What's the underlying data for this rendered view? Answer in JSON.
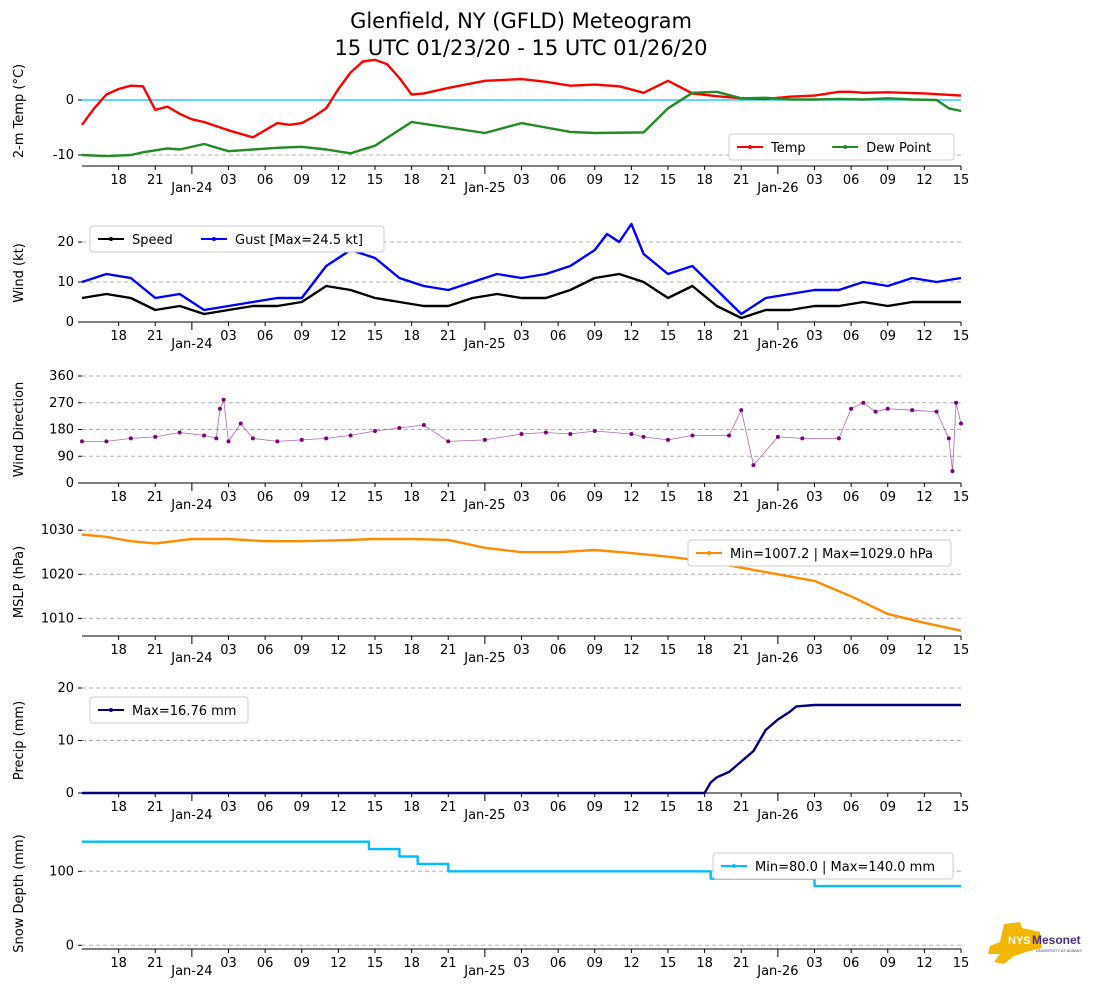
{
  "chart_data": {
    "type": "line",
    "title": [
      "Glenfield, NY (GFLD) Meteogram",
      "15 UTC 01/23/20 - 15 UTC 01/26/20"
    ],
    "x_range_hours": [
      0,
      72
    ],
    "x_ticks": [
      "18",
      "21",
      "Jan-24",
      "03",
      "06",
      "09",
      "12",
      "15",
      "18",
      "21",
      "Jan-25",
      "03",
      "06",
      "09",
      "12",
      "15",
      "18",
      "21",
      "Jan-26",
      "03",
      "06",
      "09",
      "12",
      "15"
    ],
    "panels": [
      {
        "id": "temp",
        "ylabel": "2-m Temp (°C)",
        "ylim": [
          -12,
          8
        ],
        "yticks": [
          "0",
          "-10"
        ],
        "ytick_values": [
          0,
          -10
        ],
        "zero_line": true,
        "legend": [
          {
            "label": "Temp",
            "color": "#ff0000"
          },
          {
            "label": "Dew Point",
            "color": "#228b22"
          }
        ],
        "series": [
          {
            "name": "Temp",
            "color": "#ff0000",
            "x": [
              0,
              1,
              2,
              3,
              4,
              5,
              6,
              7,
              8,
              9,
              10,
              12,
              14,
              16,
              17,
              18,
              19,
              20,
              21,
              22,
              23,
              24,
              25,
              26,
              27,
              28,
              30,
              33,
              36,
              38,
              40,
              42,
              44,
              46,
              48,
              50,
              52,
              54,
              56,
              58,
              60,
              62,
              63,
              64,
              66,
              69,
              72
            ],
            "y": [
              -4.5,
              -1.5,
              1,
              2,
              2.6,
              2.5,
              -1.8,
              -1.2,
              -2.5,
              -3.5,
              -4,
              -5.5,
              -6.8,
              -4.2,
              -4.5,
              -4.2,
              -3,
              -1.5,
              2,
              5,
              7,
              7.3,
              6.5,
              4,
              1,
              1.2,
              2.2,
              3.5,
              3.8,
              3.3,
              2.6,
              2.8,
              2.5,
              1.3,
              3.5,
              1.2,
              0.7,
              0.3,
              0.2,
              0.6,
              0.8,
              1.5,
              1.5,
              1.3,
              1.4,
              1.2,
              0.8
            ]
          },
          {
            "name": "Dew Point",
            "color": "#228b22",
            "x": [
              0,
              2,
              4,
              5,
              7,
              8,
              10,
              12,
              14,
              16,
              18,
              20,
              22,
              24,
              27,
              30,
              33,
              36,
              38,
              40,
              42,
              46,
              48,
              50,
              52,
              54,
              56,
              58,
              60,
              62,
              64,
              66,
              68,
              70,
              71,
              72
            ],
            "y": [
              -10,
              -10.2,
              -10,
              -9.5,
              -8.8,
              -9,
              -8,
              -9.3,
              -9,
              -8.7,
              -8.5,
              -9,
              -9.7,
              -8.3,
              -4,
              -5,
              -6,
              -4.2,
              -5,
              -5.8,
              -6,
              -5.9,
              -1.5,
              1.3,
              1.5,
              0.3,
              0.4,
              0.1,
              0.1,
              0.2,
              0.1,
              0.3,
              0.1,
              0,
              -1.5,
              -2
            ]
          }
        ]
      },
      {
        "id": "wind",
        "ylabel": "Wind (kt)",
        "ylim": [
          0,
          24.5
        ],
        "yticks": [
          "20",
          "10",
          "0"
        ],
        "ytick_values": [
          20,
          10,
          0
        ],
        "legend": [
          {
            "label": "Speed",
            "color": "#000000"
          },
          {
            "label": "Gust [Max=24.5 kt]",
            "color": "#0000ff"
          }
        ],
        "series": [
          {
            "name": "Speed",
            "color": "#000000",
            "x": [
              0,
              2,
              4,
              6,
              8,
              10,
              12,
              14,
              16,
              18,
              20,
              22,
              24,
              26,
              28,
              30,
              32,
              34,
              36,
              38,
              40,
              42,
              44,
              46,
              48,
              50,
              52,
              54,
              56,
              58,
              60,
              62,
              64,
              66,
              68,
              70,
              72
            ],
            "y": [
              6,
              7,
              6,
              3,
              4,
              2,
              3,
              4,
              4,
              5,
              9,
              8,
              6,
              5,
              4,
              4,
              6,
              7,
              6,
              6,
              8,
              11,
              12,
              10,
              6,
              9,
              4,
              1,
              3,
              3,
              4,
              4,
              5,
              4,
              5,
              5,
              5
            ]
          },
          {
            "name": "Gust",
            "color": "#0000ff",
            "x": [
              0,
              2,
              4,
              6,
              8,
              10,
              12,
              14,
              16,
              18,
              20,
              22,
              24,
              26,
              28,
              30,
              32,
              34,
              36,
              38,
              40,
              42,
              43,
              44,
              45,
              46,
              48,
              50,
              52,
              54,
              56,
              58,
              60,
              62,
              64,
              66,
              68,
              70,
              72
            ],
            "y": [
              10,
              12,
              11,
              6,
              7,
              3,
              4,
              5,
              6,
              6,
              14,
              18,
              16,
              11,
              9,
              8,
              10,
              12,
              11,
              12,
              14,
              18,
              22,
              20,
              24.5,
              17,
              12,
              14,
              8,
              2,
              6,
              7,
              8,
              8,
              10,
              9,
              11,
              10,
              11
            ]
          }
        ]
      },
      {
        "id": "wdir",
        "ylabel": "Wind Direction",
        "ylim": [
          0,
          360
        ],
        "yticks": [
          "360",
          "270",
          "180",
          "90",
          "0"
        ],
        "ytick_values": [
          360,
          270,
          180,
          90,
          0
        ],
        "series": [
          {
            "name": "Direction",
            "color": "#800080",
            "x": [
              0,
              2,
              4,
              6,
              8,
              10,
              11,
              11.3,
              11.6,
              12,
              13,
              14,
              16,
              18,
              20,
              22,
              24,
              26,
              28,
              30,
              33,
              36,
              38,
              40,
              42,
              45,
              46,
              48,
              50,
              53,
              54,
              55,
              57,
              59,
              62,
              63,
              64,
              65,
              66,
              68,
              70,
              71,
              71.3,
              71.6,
              72
            ],
            "y": [
              140,
              140,
              150,
              155,
              170,
              160,
              150,
              250,
              280,
              140,
              200,
              150,
              140,
              145,
              150,
              160,
              175,
              185,
              195,
              140,
              145,
              165,
              170,
              165,
              175,
              165,
              155,
              145,
              160,
              160,
              245,
              60,
              155,
              150,
              150,
              250,
              270,
              240,
              250,
              245,
              240,
              150,
              40,
              270,
              200
            ]
          }
        ]
      },
      {
        "id": "mslp",
        "ylabel": "MSLP (hPa)",
        "ylim": [
          1006,
          1030.5
        ],
        "yticks": [
          "1030",
          "1020",
          "1010"
        ],
        "ytick_values": [
          1030,
          1020,
          1010
        ],
        "legend": [
          {
            "label": "Min=1007.2 | Max=1029.0 hPa",
            "color": "#ff8c00"
          }
        ],
        "series": [
          {
            "name": "MSLP",
            "color": "#ff8c00",
            "x": [
              0,
              2,
              4,
              6,
              9,
              12,
              15,
              18,
              21,
              24,
              27,
              30,
              33,
              36,
              39,
              42,
              45,
              48,
              51,
              54,
              57,
              60,
              63,
              66,
              69,
              72
            ],
            "y": [
              1029,
              1028.5,
              1027.5,
              1027,
              1028,
              1028,
              1027.5,
              1027.5,
              1027.7,
              1028,
              1028,
              1027.8,
              1026,
              1025,
              1025,
              1025.5,
              1024.8,
              1024,
              1023,
              1021.5,
              1020,
              1018.5,
              1015,
              1011,
              1009,
              1007.2
            ]
          }
        ]
      },
      {
        "id": "precip",
        "ylabel": "Precip (mm)",
        "ylim": [
          0,
          20
        ],
        "yticks": [
          "20",
          "10",
          "0"
        ],
        "ytick_values": [
          20,
          10,
          0
        ],
        "legend": [
          {
            "label": "Max=16.76 mm",
            "color": "#000080"
          }
        ],
        "series": [
          {
            "name": "Precip",
            "color": "#000080",
            "x": [
              0,
              51,
              51.5,
              52,
              52.5,
              53,
              54,
              55,
              56,
              57,
              58,
              58.5,
              60,
              63,
              66,
              69,
              72
            ],
            "y": [
              0,
              0,
              2,
              3,
              3.5,
              4,
              6,
              8,
              12,
              14,
              15.5,
              16.5,
              16.76,
              16.76,
              16.76,
              16.76,
              16.76
            ]
          }
        ]
      },
      {
        "id": "snow",
        "ylabel": "Snow Depth (mm)",
        "ylim": [
          -5,
          145
        ],
        "yticks": [
          "100",
          "0"
        ],
        "ytick_values": [
          100,
          0
        ],
        "legend": [
          {
            "label": "Min=80.0 | Max=140.0 mm",
            "color": "#00bfff"
          }
        ],
        "series": [
          {
            "name": "Snow Depth",
            "color": "#00bfff",
            "x": [
              0,
              23.5,
              23.5,
              26.0,
              26.0,
              27.5,
              27.5,
              30.0,
              30.0,
              51.5,
              51.5,
              60,
              60,
              72
            ],
            "y": [
              140,
              140,
              130,
              130,
              120,
              120,
              110,
              110,
              100,
              100,
              90,
              90,
              80,
              80
            ]
          }
        ]
      }
    ]
  },
  "logo": {
    "text_a": "NYS",
    "text_b": "Mesonet",
    "text_c": "UNIVERSITY AT ALBANY"
  }
}
